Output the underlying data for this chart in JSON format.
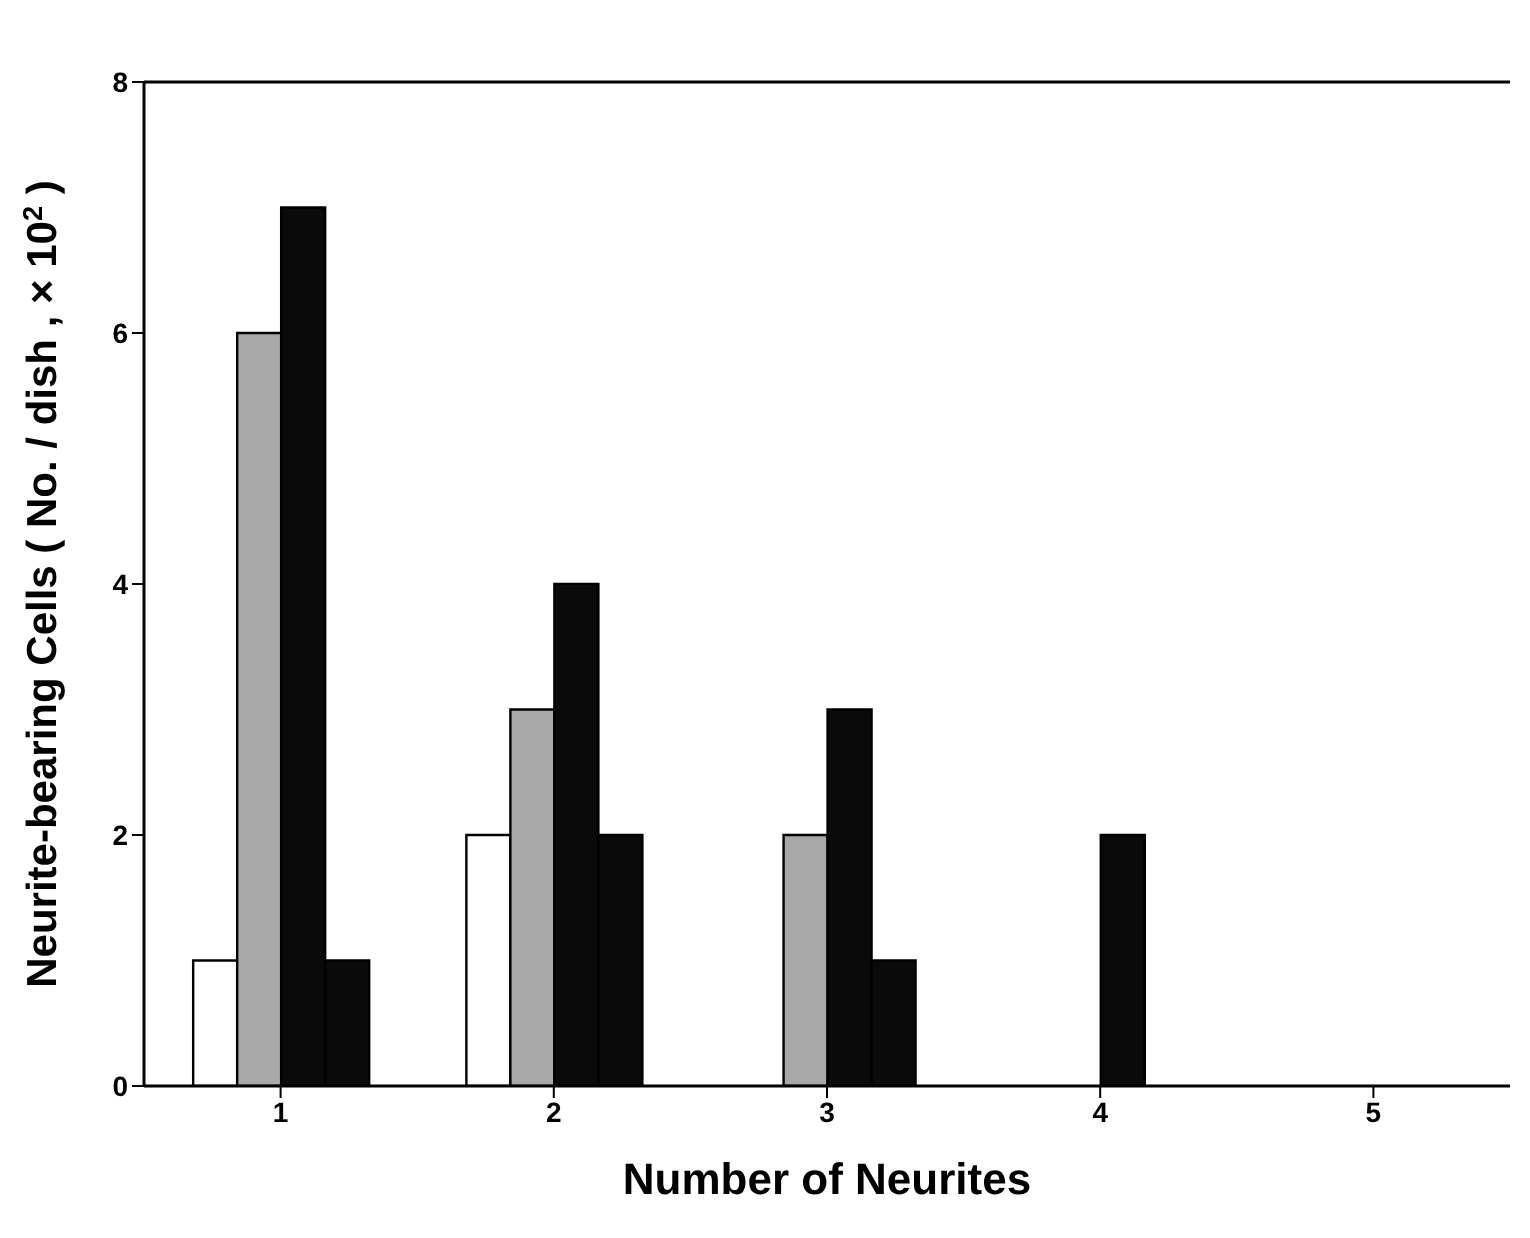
{
  "chart_data": {
    "type": "bar",
    "xlabel": "Number of Neurites",
    "ylabel": "Neurite-bearing Cells ( No. / dish , × 10$^{2}$ )",
    "categories": [
      "1",
      "2",
      "3",
      "4",
      "5"
    ],
    "series": [
      {
        "color": "#ffffff",
        "values": [
          1,
          2,
          0,
          0,
          0
        ]
      },
      {
        "color": "#a8a8a8",
        "values": [
          6,
          3,
          2,
          0,
          0
        ]
      },
      {
        "color": "#0a0a0a",
        "values": [
          7,
          4,
          3,
          2,
          0
        ]
      },
      {
        "color": "#0a0a0a",
        "values": [
          1,
          2,
          1,
          0,
          0
        ]
      }
    ],
    "ylim": [
      0,
      8
    ],
    "yticks": [
      0,
      2,
      4,
      6,
      8
    ],
    "grid": false,
    "legend": false
  }
}
